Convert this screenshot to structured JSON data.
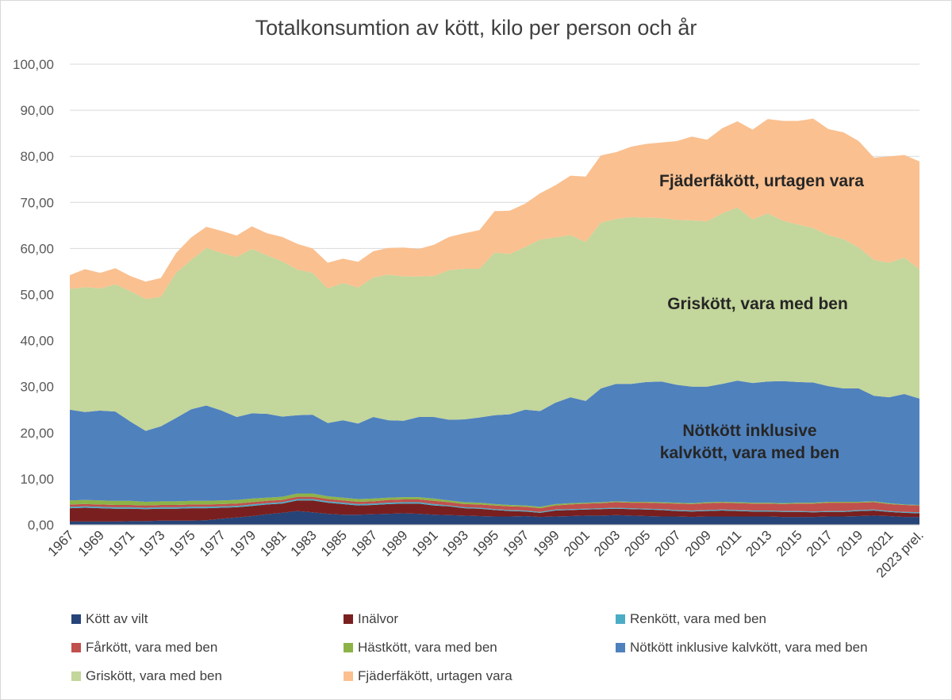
{
  "chart_data": {
    "type": "area",
    "stacked": true,
    "title": "Totalkonsumtion av kött, kilo per person och år",
    "xlabel": "",
    "ylabel": "",
    "ylim": [
      0,
      100
    ],
    "yticks": [
      "0,00",
      "10,00",
      "20,00",
      "30,00",
      "40,00",
      "50,00",
      "60,00",
      "70,00",
      "80,00",
      "90,00",
      "100,00"
    ],
    "grid": true,
    "legend_position": "bottom",
    "x": [
      "1967",
      "1968",
      "1969",
      "1970",
      "1971",
      "1972",
      "1973",
      "1974",
      "1975",
      "1976",
      "1977",
      "1978",
      "1979",
      "1980",
      "1981",
      "1982",
      "1983",
      "1984",
      "1985",
      "1986",
      "1987",
      "1988",
      "1989",
      "1990",
      "1991",
      "1992",
      "1993",
      "1994",
      "1995",
      "1996",
      "1997",
      "1998",
      "1999",
      "2000",
      "2001",
      "2002",
      "2003",
      "2004",
      "2005",
      "2006",
      "2007",
      "2008",
      "2009",
      "2010",
      "2011",
      "2012",
      "2013",
      "2014",
      "2015",
      "2016",
      "2017",
      "2018",
      "2019",
      "2020",
      "2021",
      "2022",
      "2023 prel."
    ],
    "x_tick_labels": [
      "1967",
      "1969",
      "1971",
      "1973",
      "1975",
      "1977",
      "1979",
      "1981",
      "1983",
      "1985",
      "1987",
      "1989",
      "1991",
      "1993",
      "1995",
      "1997",
      "1999",
      "2001",
      "2003",
      "2005",
      "2007",
      "2009",
      "2011",
      "2013",
      "2015",
      "2017",
      "2019",
      "2021",
      "2023 prel."
    ],
    "series": [
      {
        "name": "Kött av vilt",
        "color": "#264478",
        "values": [
          0.7,
          0.7,
          0.7,
          0.7,
          0.8,
          0.8,
          0.9,
          0.9,
          0.9,
          1.0,
          1.3,
          1.6,
          1.9,
          2.3,
          2.6,
          3.0,
          2.7,
          2.4,
          2.2,
          2.2,
          2.3,
          2.4,
          2.5,
          2.4,
          2.2,
          2.1,
          2.0,
          1.9,
          1.8,
          1.8,
          1.9,
          1.7,
          1.8,
          1.9,
          2.0,
          2.0,
          2.1,
          2.0,
          1.9,
          1.8,
          1.8,
          1.7,
          1.8,
          1.8,
          1.8,
          1.8,
          1.8,
          1.7,
          1.7,
          1.7,
          1.8,
          1.8,
          1.9,
          2.0,
          1.9,
          1.7,
          1.7
        ]
      },
      {
        "name": "Inälvor",
        "color": "#7a1f1f",
        "values": [
          2.9,
          3.0,
          2.9,
          2.8,
          2.7,
          2.6,
          2.6,
          2.6,
          2.7,
          2.6,
          2.4,
          2.2,
          2.2,
          2.1,
          2.0,
          2.3,
          2.6,
          2.4,
          2.3,
          2.0,
          2.0,
          2.1,
          2.1,
          2.2,
          2.0,
          1.9,
          1.6,
          1.6,
          1.4,
          1.2,
          1.0,
          0.9,
          1.3,
          1.3,
          1.3,
          1.4,
          1.4,
          1.4,
          1.4,
          1.4,
          1.2,
          1.2,
          1.2,
          1.3,
          1.2,
          1.1,
          1.1,
          1.1,
          1.1,
          1.0,
          1.0,
          1.0,
          1.1,
          1.1,
          0.9,
          0.9,
          0.8
        ]
      },
      {
        "name": "Renkött, vara med ben",
        "color": "#4bacc6",
        "values": [
          0.3,
          0.3,
          0.3,
          0.3,
          0.3,
          0.3,
          0.3,
          0.3,
          0.3,
          0.3,
          0.3,
          0.3,
          0.3,
          0.3,
          0.3,
          0.3,
          0.3,
          0.3,
          0.3,
          0.3,
          0.3,
          0.3,
          0.3,
          0.3,
          0.3,
          0.2,
          0.2,
          0.2,
          0.2,
          0.2,
          0.2,
          0.2,
          0.2,
          0.2,
          0.2,
          0.2,
          0.2,
          0.2,
          0.2,
          0.2,
          0.2,
          0.2,
          0.2,
          0.2,
          0.2,
          0.2,
          0.2,
          0.2,
          0.2,
          0.2,
          0.2,
          0.2,
          0.2,
          0.2,
          0.2,
          0.2,
          0.2
        ]
      },
      {
        "name": "Fårkött, vara med ben",
        "color": "#c0504d",
        "values": [
          0.5,
          0.5,
          0.5,
          0.5,
          0.5,
          0.5,
          0.5,
          0.5,
          0.5,
          0.5,
          0.5,
          0.5,
          0.5,
          0.5,
          0.5,
          0.5,
          0.5,
          0.5,
          0.5,
          0.5,
          0.5,
          0.6,
          0.6,
          0.6,
          0.7,
          0.7,
          0.7,
          0.7,
          0.8,
          0.8,
          0.8,
          0.8,
          0.9,
          1.0,
          1.1,
          1.1,
          1.2,
          1.2,
          1.3,
          1.3,
          1.4,
          1.4,
          1.5,
          1.5,
          1.5,
          1.5,
          1.5,
          1.5,
          1.6,
          1.7,
          1.8,
          1.8,
          1.6,
          1.6,
          1.5,
          1.5,
          1.5
        ]
      },
      {
        "name": "Hästkött, vara med ben",
        "color": "#8db348",
        "values": [
          0.9,
          0.9,
          0.9,
          0.9,
          0.9,
          0.8,
          0.8,
          0.8,
          0.8,
          0.8,
          0.8,
          0.8,
          0.8,
          0.7,
          0.7,
          0.7,
          0.7,
          0.6,
          0.6,
          0.6,
          0.6,
          0.5,
          0.5,
          0.5,
          0.5,
          0.4,
          0.4,
          0.4,
          0.3,
          0.3,
          0.3,
          0.3,
          0.3,
          0.3,
          0.2,
          0.2,
          0.2,
          0.2,
          0.2,
          0.2,
          0.2,
          0.2,
          0.2,
          0.2,
          0.2,
          0.2,
          0.2,
          0.2,
          0.2,
          0.2,
          0.2,
          0.2,
          0.2,
          0.2,
          0.2,
          0.1,
          0.1
        ]
      },
      {
        "name": "Nötkött inklusive kalvkött, vara med ben",
        "color": "#4f81bd",
        "values": [
          19.7,
          19.1,
          19.5,
          19.4,
          17.2,
          15.4,
          16.3,
          18.1,
          19.9,
          20.7,
          19.5,
          18.0,
          18.5,
          18.2,
          17.4,
          17.0,
          17.1,
          15.9,
          16.8,
          16.4,
          17.7,
          16.8,
          16.6,
          17.4,
          17.7,
          17.5,
          18.0,
          18.5,
          19.3,
          19.7,
          20.8,
          20.8,
          22.0,
          23.0,
          22.1,
          24.7,
          25.5,
          25.6,
          26.0,
          26.2,
          25.6,
          25.3,
          25.1,
          25.6,
          26.4,
          26.0,
          26.3,
          26.5,
          26.2,
          26.1,
          25.1,
          24.6,
          24.6,
          22.9,
          23.0,
          24.0,
          23.1
        ]
      },
      {
        "name": "Griskött, vara med ben",
        "color": "#c3d69b",
        "values": [
          26.2,
          27.1,
          26.5,
          27.6,
          28.3,
          28.6,
          28.1,
          31.5,
          32.4,
          34.2,
          34.2,
          34.7,
          35.7,
          34.4,
          33.7,
          31.6,
          30.8,
          29.2,
          29.8,
          29.5,
          30.3,
          31.6,
          31.3,
          30.5,
          30.6,
          32.5,
          32.7,
          32.3,
          35.3,
          34.8,
          35.3,
          37.2,
          35.9,
          35.2,
          34.5,
          36.0,
          35.8,
          36.2,
          35.7,
          35.5,
          35.8,
          36.1,
          35.9,
          37.0,
          37.6,
          35.5,
          36.5,
          34.8,
          34.2,
          33.5,
          32.8,
          32.4,
          30.6,
          29.5,
          29.2,
          29.6,
          28.1
        ]
      },
      {
        "name": "Fjäderfäkött, urtagen vara",
        "color": "#fac090",
        "values": [
          3.0,
          3.9,
          3.4,
          3.5,
          3.3,
          3.8,
          4.1,
          4.3,
          4.9,
          4.6,
          4.8,
          4.7,
          4.9,
          4.8,
          5.3,
          5.6,
          5.3,
          5.6,
          5.3,
          5.6,
          5.7,
          5.8,
          6.3,
          6.0,
          6.8,
          7.2,
          7.7,
          8.4,
          9.0,
          9.4,
          9.4,
          10.1,
          11.3,
          12.9,
          14.2,
          14.6,
          14.5,
          15.3,
          16.0,
          16.4,
          17.1,
          18.2,
          17.7,
          18.5,
          18.7,
          19.5,
          20.5,
          21.7,
          22.5,
          23.8,
          23.0,
          23.2,
          23.1,
          22.2,
          23.1,
          22.3,
          23.4
        ]
      }
    ],
    "area_labels": [
      "Fjäderfäkött, urtagen vara",
      "Griskött, vara med ben",
      "Nötkött inklusive",
      "kalvkött, vara med ben"
    ]
  }
}
